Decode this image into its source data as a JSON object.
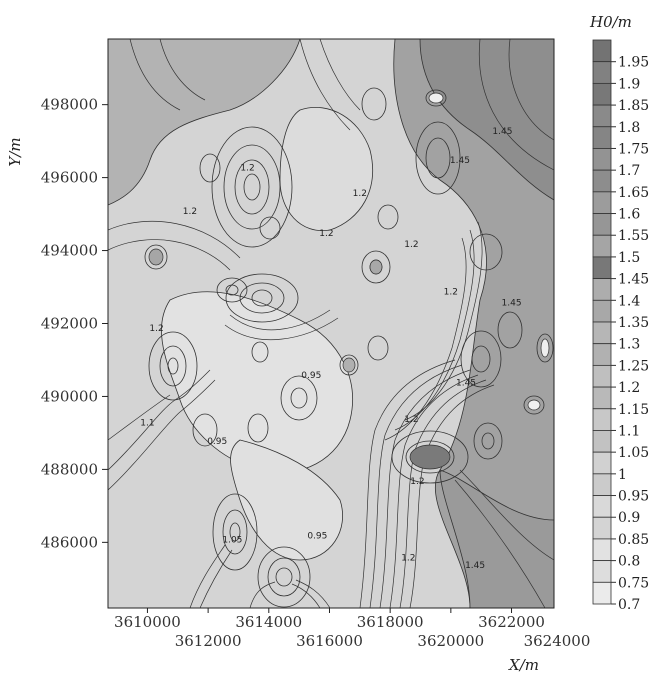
{
  "chart_data": {
    "type": "contour",
    "title": "",
    "xlabel": "X/m",
    "ylabel": "Y/m",
    "legend_title": "H0/m",
    "xlim": [
      3608700,
      3623400
    ],
    "ylim": [
      484200,
      499800
    ],
    "x_ticks_upper": [
      "3610000",
      "3614000",
      "3618000",
      "3622000"
    ],
    "x_ticks_upper_values": [
      3610000,
      3614000,
      3618000,
      3622000
    ],
    "x_ticks_lower": [
      "3612000",
      "3616000",
      "3620000",
      "3624000"
    ],
    "x_ticks_lower_values": [
      3612000,
      3616000,
      3620000,
      3624000
    ],
    "y_ticks": [
      "486000",
      "488000",
      "490000",
      "492000",
      "494000",
      "496000",
      "498000"
    ],
    "y_ticks_values": [
      486000,
      488000,
      490000,
      492000,
      494000,
      496000,
      498000
    ],
    "levels": [
      "1.95",
      "1.9",
      "1.85",
      "1.8",
      "1.75",
      "1.7",
      "1.65",
      "1.6",
      "1.55",
      "1.5",
      "1.45",
      "1.4",
      "1.35",
      "1.3",
      "1.25",
      "1.2",
      "1.15",
      "1.1",
      "1.05",
      "1",
      "0.95",
      "0.9",
      "0.85",
      "0.8",
      "0.75",
      "0.7"
    ],
    "contour_labels": [
      {
        "text": "1.2",
        "x": 3611400,
        "y": 495000
      },
      {
        "text": "1.2",
        "x": 3613300,
        "y": 496200
      },
      {
        "text": "1.2",
        "x": 3610300,
        "y": 491800
      },
      {
        "text": "1.2",
        "x": 3615900,
        "y": 494400
      },
      {
        "text": "1.2",
        "x": 3617000,
        "y": 495500
      },
      {
        "text": "1.2",
        "x": 3618700,
        "y": 494100
      },
      {
        "text": "1.2",
        "x": 3620000,
        "y": 492800
      },
      {
        "text": "1.2",
        "x": 3618700,
        "y": 489300
      },
      {
        "text": "1.2",
        "x": 3618600,
        "y": 485500
      },
      {
        "text": "1.45",
        "x": 3621700,
        "y": 497200
      },
      {
        "text": "1.45",
        "x": 3620300,
        "y": 496400
      },
      {
        "text": "1.45",
        "x": 3622000,
        "y": 492500
      },
      {
        "text": "1.45",
        "x": 3620500,
        "y": 490300
      },
      {
        "text": "1.45",
        "x": 3620800,
        "y": 485300
      },
      {
        "text": "1.2",
        "x": 3618900,
        "y": 487600
      },
      {
        "text": "0.95",
        "x": 3615400,
        "y": 490500
      },
      {
        "text": "0.95",
        "x": 3615600,
        "y": 486100
      },
      {
        "text": "0.95",
        "x": 3612300,
        "y": 488700
      },
      {
        "text": "1.1",
        "x": 3610000,
        "y": 489200
      },
      {
        "text": "1.05",
        "x": 3612800,
        "y": 486000
      }
    ],
    "peaks": [
      {
        "x": 3613600,
        "y": 495800,
        "value": 0.8
      },
      {
        "x": 3614200,
        "y": 492700,
        "value": 0.85
      },
      {
        "x": 3612800,
        "y": 493000,
        "value": 0.9
      },
      {
        "x": 3614500,
        "y": 485100,
        "value": 0.7
      },
      {
        "x": 3612700,
        "y": 486400,
        "value": 0.85
      },
      {
        "x": 3610300,
        "y": 490800,
        "value": 0.9
      },
      {
        "x": 3615800,
        "y": 490000,
        "value": 0.85
      },
      {
        "x": 3617400,
        "y": 493600,
        "value": 1.3
      },
      {
        "x": 3621700,
        "y": 491000,
        "value": 1.5
      },
      {
        "x": 3619100,
        "y": 488600,
        "value": 1.85
      },
      {
        "x": 3621900,
        "y": 488800,
        "value": 1.45
      },
      {
        "x": 3620200,
        "y": 496800,
        "value": 1.6
      },
      {
        "x": 3616800,
        "y": 498000,
        "value": 1.3
      },
      {
        "x": 3620000,
        "y": 498300,
        "value": 1.3
      }
    ],
    "grid": false,
    "legend_position": "right"
  }
}
